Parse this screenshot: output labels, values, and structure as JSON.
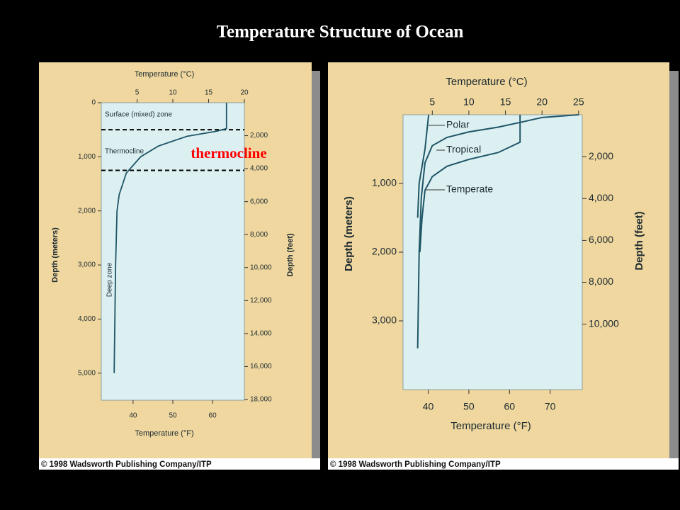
{
  "title": "Temperature Structure of Ocean",
  "chart_data": [
    {
      "type": "line",
      "xlabel": "Temperature (°C)",
      "x2label": "Temperature (°F)",
      "ylabel": "Depth (meters)",
      "y2label": "Depth (feet)",
      "xlim": [
        0,
        20
      ],
      "xticks": [
        5,
        10,
        15,
        20
      ],
      "x2lim": [
        32,
        68
      ],
      "x2ticks": [
        40,
        50,
        60
      ],
      "ylim": [
        0,
        5500
      ],
      "yticks": [
        0,
        {
          "value": 1000,
          "label": "1,000"
        },
        {
          "value": 2000,
          "label": "2,000"
        },
        {
          "value": 3000,
          "label": "3,000"
        },
        {
          "value": 4000,
          "label": "4,000"
        },
        {
          "value": 5000,
          "label": "5,000"
        }
      ],
      "y2lim": [
        0,
        18045
      ],
      "y2ticks": [
        {
          "value": 2000,
          "label": "2,000"
        },
        {
          "value": 4000,
          "label": "4,000"
        },
        {
          "value": 6000,
          "label": "6,000"
        },
        {
          "value": 8000,
          "label": "8,000"
        },
        {
          "value": 10000,
          "label": "10,000"
        },
        {
          "value": 12000,
          "label": "12,000"
        },
        {
          "value": 14000,
          "label": "14,000"
        },
        {
          "value": 16000,
          "label": "16,000"
        },
        {
          "value": 18000,
          "label": "18,000"
        }
      ],
      "series": [
        {
          "color": "#1f5566",
          "x": [
            17.5,
            17.5,
            16,
            12,
            8,
            5.5,
            3.5,
            2.5,
            2.2,
            2,
            1.9,
            1.8
          ],
          "values": [
            0,
            480,
            530,
            620,
            800,
            1000,
            1300,
            1700,
            2000,
            3000,
            4000,
            5000
          ]
        }
      ],
      "zone_boundaries": [
        500,
        1250
      ],
      "annotations": [
        "Surface (mixed) zone",
        "Thermocline",
        "Deep zone"
      ],
      "highlight": {
        "text": "thermocline",
        "color": "#ff0000"
      },
      "credit": "© 1998 Wadsworth Publishing Company/ITP"
    },
    {
      "type": "line",
      "xlabel": "Temperature (°C)",
      "x2label": "Temperature (°F)",
      "ylabel": "Depth (meters)",
      "y2label": "Depth (feet)",
      "xlim": [
        1,
        25.5
      ],
      "xticks": [
        5,
        10,
        15,
        20,
        25
      ],
      "x2lim": [
        33.8,
        77.9
      ],
      "x2ticks": [
        40,
        50,
        60,
        70
      ],
      "ylim": [
        0,
        4000
      ],
      "yticks": [
        {
          "value": 1000,
          "label": "1,000"
        },
        {
          "value": 2000,
          "label": "2,000"
        },
        {
          "value": 3000,
          "label": "3,000"
        }
      ],
      "y2lim": [
        0,
        13123
      ],
      "y2ticks": [
        {
          "value": 2000,
          "label": "2,000"
        },
        {
          "value": 4000,
          "label": "4,000"
        },
        {
          "value": 6000,
          "label": "6,000"
        },
        {
          "value": 8000,
          "label": "8,000"
        },
        {
          "value": 10000,
          "label": "10,000"
        }
      ],
      "series": [
        {
          "name": "Polar",
          "color": "#1f5566",
          "x": [
            4.5,
            4,
            3.2,
            3
          ],
          "values": [
            0,
            500,
            1000,
            1500
          ]
        },
        {
          "name": "Tropical",
          "color": "#1f5566",
          "x": [
            25,
            20,
            17.5,
            14,
            10,
            7,
            5,
            4,
            3.5,
            3.2,
            3
          ],
          "values": [
            0,
            40,
            100,
            180,
            250,
            330,
            450,
            700,
            1200,
            2000,
            3400
          ]
        },
        {
          "name": "Temperate",
          "color": "#1f5566",
          "x": [
            17,
            17,
            14,
            10,
            7,
            5,
            4,
            3.6,
            3.3
          ],
          "values": [
            0,
            400,
            550,
            650,
            750,
            900,
            1100,
            1500,
            2000
          ]
        }
      ],
      "credit": "© 1998 Wadsworth Publishing Company/ITP"
    }
  ]
}
